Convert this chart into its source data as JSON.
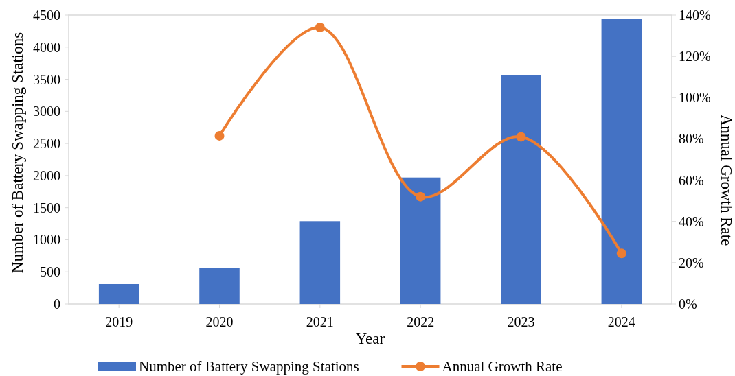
{
  "chart_data": {
    "type": "bar",
    "xlabel": "Year",
    "ylabel": "Number of Battery Swapping Stations",
    "y2label": "Annual Growth Rate",
    "categories": [
      "2019",
      "2020",
      "2021",
      "2022",
      "2023",
      "2024"
    ],
    "series": [
      {
        "name": "Number of Battery Swapping Stations",
        "color": "#4472c4",
        "values": [
          310,
          560,
          1290,
          1970,
          3570,
          4440
        ]
      },
      {
        "name": "Annual Growth Rate",
        "type": "line",
        "axis": "y2",
        "color": "#ed7d31",
        "marker": "circle",
        "values": [
          null,
          81.5,
          134,
          52,
          81,
          24.5
        ]
      }
    ],
    "ylim": [
      0,
      4500
    ],
    "yticks": [
      0,
      500,
      1000,
      1500,
      2000,
      2500,
      3000,
      3500,
      4000,
      4500
    ],
    "y2lim": [
      0,
      140
    ],
    "y2ticks": [
      {
        "value": 0,
        "label": "0%"
      },
      {
        "value": 20,
        "label": "20%"
      },
      {
        "value": 40,
        "label": "40%"
      },
      {
        "value": 60,
        "label": "60%"
      },
      {
        "value": 80,
        "label": "80%"
      },
      {
        "value": 100,
        "label": "100%"
      },
      {
        "value": 120,
        "label": "120%"
      },
      {
        "value": 140,
        "label": "140%"
      }
    ],
    "grid": false,
    "legend": "bottom"
  }
}
